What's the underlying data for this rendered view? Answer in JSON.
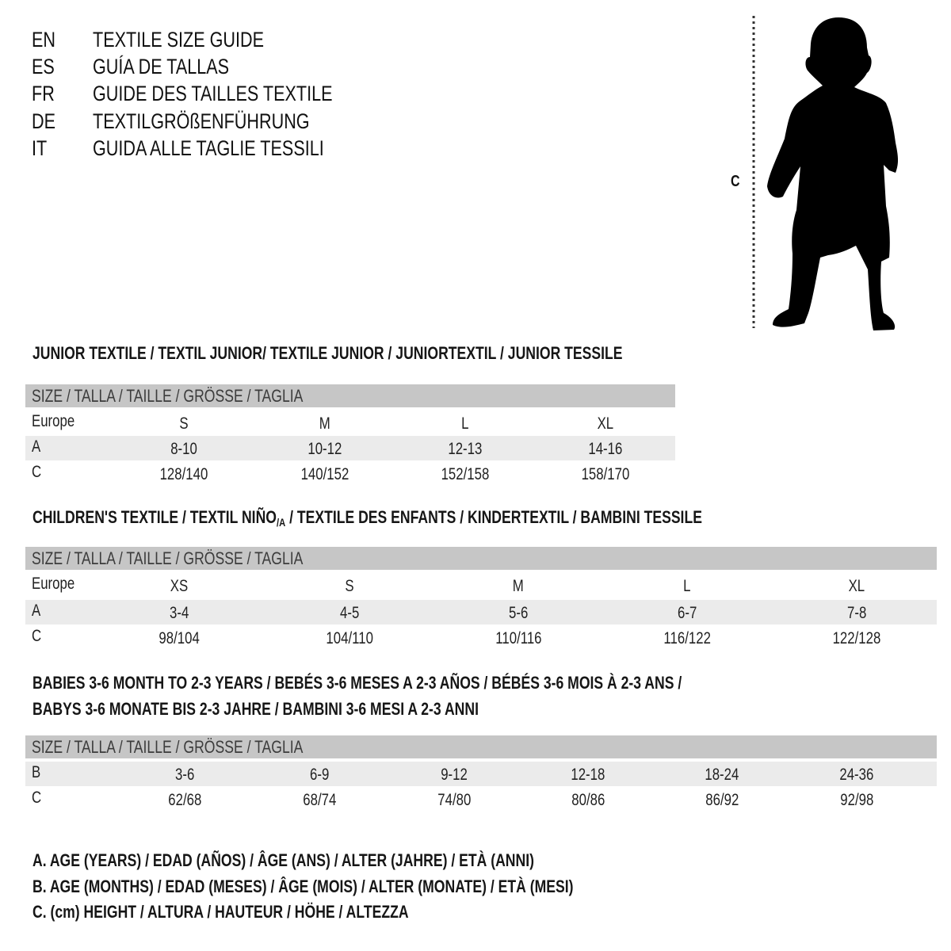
{
  "titles": [
    {
      "code": "EN",
      "text": "TEXTILE SIZE GUIDE"
    },
    {
      "code": "ES",
      "text": "GUÍA DE TALLAS"
    },
    {
      "code": "FR",
      "text": "GUIDE DES TAILLES TEXTILE"
    },
    {
      "code": "DE",
      "text": "TEXTILGRÖßENFÜHRUNG"
    },
    {
      "code": "IT",
      "text": "GUIDA ALLE TAGLIE TESSILI"
    }
  ],
  "figure": {
    "label": "C",
    "silhouette": "child-silhouette"
  },
  "colors": {
    "header_band": "#c6c6c6",
    "row_band": "#ebebeb"
  },
  "junior": {
    "heading": "JUNIOR TEXTILE / TEXTIL JUNIOR/ TEXTILE JUNIOR / JUNIORTEXTIL / JUNIOR TESSILE",
    "header": "SIZE / TALLA / TAILLE / GRÖSSE / TAGLIA",
    "rows": [
      {
        "label": "Europe",
        "values": [
          "S",
          "M",
          "L",
          "XL"
        ]
      },
      {
        "label": "A",
        "values": [
          "8-10",
          "10-12",
          "12-13",
          "14-16"
        ]
      },
      {
        "label": "C",
        "values": [
          "128/140",
          "140/152",
          "152/158",
          "158/170"
        ]
      }
    ]
  },
  "children": {
    "heading_pre": "CHILDREN'S TEXTILE / TEXTIL NIÑO",
    "heading_sub": "/A",
    "heading_post": " / TEXTILE DES ENFANTS / KINDERTEXTIL / BAMBINI TESSILE",
    "header": "SIZE / TALLA / TAILLE / GRÖSSE / TAGLIA",
    "rows": [
      {
        "label": "Europe",
        "values": [
          "XS",
          "S",
          "M",
          "L",
          "XL"
        ]
      },
      {
        "label": "A",
        "values": [
          "3-4",
          "4-5",
          "5-6",
          "6-7",
          "7-8"
        ]
      },
      {
        "label": "C",
        "values": [
          "98/104",
          "104/110",
          "110/116",
          "116/122",
          "122/128"
        ]
      }
    ]
  },
  "babies": {
    "heading_line1": "BABIES 3-6 MONTH TO 2-3 YEARS / BEBÉS 3-6 MESES A 2-3 AÑOS / BÉBÉS 3-6 MOIS À 2-3 ANS /",
    "heading_line2": "BABYS 3-6 MONATE BIS 2-3 JAHRE / BAMBINI 3-6 MESI A 2-3 ANNI",
    "header": "SIZE / TALLA / TAILLE / GRÖSSE / TAGLIA",
    "rows": [
      {
        "label": "B",
        "values": [
          "3-6",
          "6-9",
          "9-12",
          "12-18",
          "18-24",
          "24-36"
        ]
      },
      {
        "label": "C",
        "values": [
          "62/68",
          "68/74",
          "74/80",
          "80/86",
          "86/92",
          "92/98"
        ]
      }
    ]
  },
  "legend": [
    "A. AGE (YEARS) / EDAD (AÑOS) / ÂGE (ANS) / ALTER (JAHRE) / ETÀ (ANNI)",
    "B. AGE (MONTHS) / EDAD (MESES) / ÂGE (MOIS) / ALTER (MONATE) / ETÀ (MESI)",
    "C. (cm) HEIGHT / ALTURA / HAUTEUR / HÖHE / ALTEZZA"
  ]
}
